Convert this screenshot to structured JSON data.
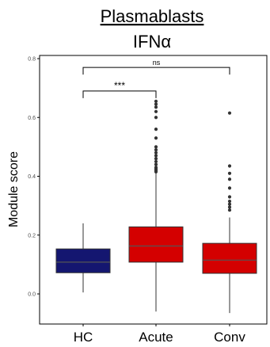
{
  "chart_data": {
    "type": "box",
    "title": "Plasmablasts",
    "subtitle": "IFNα",
    "xlabel": "",
    "ylabel": "Module score",
    "ylim": [
      -0.1,
      0.82
    ],
    "yticks": [
      "0.0",
      "0.2",
      "0.4",
      "0.6",
      "0.8"
    ],
    "ytick_values": [
      0.0,
      0.2,
      0.4,
      0.6,
      0.8
    ],
    "grid": false,
    "categories": [
      "HC",
      "Acute",
      "Conv"
    ],
    "boxes": [
      {
        "group": "HC",
        "color": "#141670",
        "whisker_low": 0.005,
        "q1": 0.072,
        "median": 0.108,
        "q3": 0.153,
        "whisker_high": 0.24,
        "outliers": []
      },
      {
        "group": "Acute",
        "color": "#d40000",
        "whisker_low": -0.06,
        "q1": 0.108,
        "median": 0.163,
        "q3": 0.228,
        "whisker_high": 0.41,
        "outliers": [
          0.415,
          0.42,
          0.425,
          0.43,
          0.44,
          0.45,
          0.46,
          0.47,
          0.48,
          0.49,
          0.5,
          0.53,
          0.56,
          0.6,
          0.62,
          0.635,
          0.645,
          0.655
        ]
      },
      {
        "group": "Conv",
        "color": "#d40000",
        "whisker_low": -0.065,
        "q1": 0.07,
        "median": 0.115,
        "q3": 0.172,
        "whisker_high": 0.26,
        "outliers": [
          0.285,
          0.295,
          0.305,
          0.315,
          0.33,
          0.36,
          0.39,
          0.41,
          0.435,
          0.615
        ]
      }
    ],
    "comparisons": [
      {
        "from": "HC",
        "to": "Acute",
        "label": "***",
        "y": 0.69
      },
      {
        "from": "HC",
        "to": "Conv",
        "label": "ns",
        "y": 0.77
      }
    ]
  }
}
